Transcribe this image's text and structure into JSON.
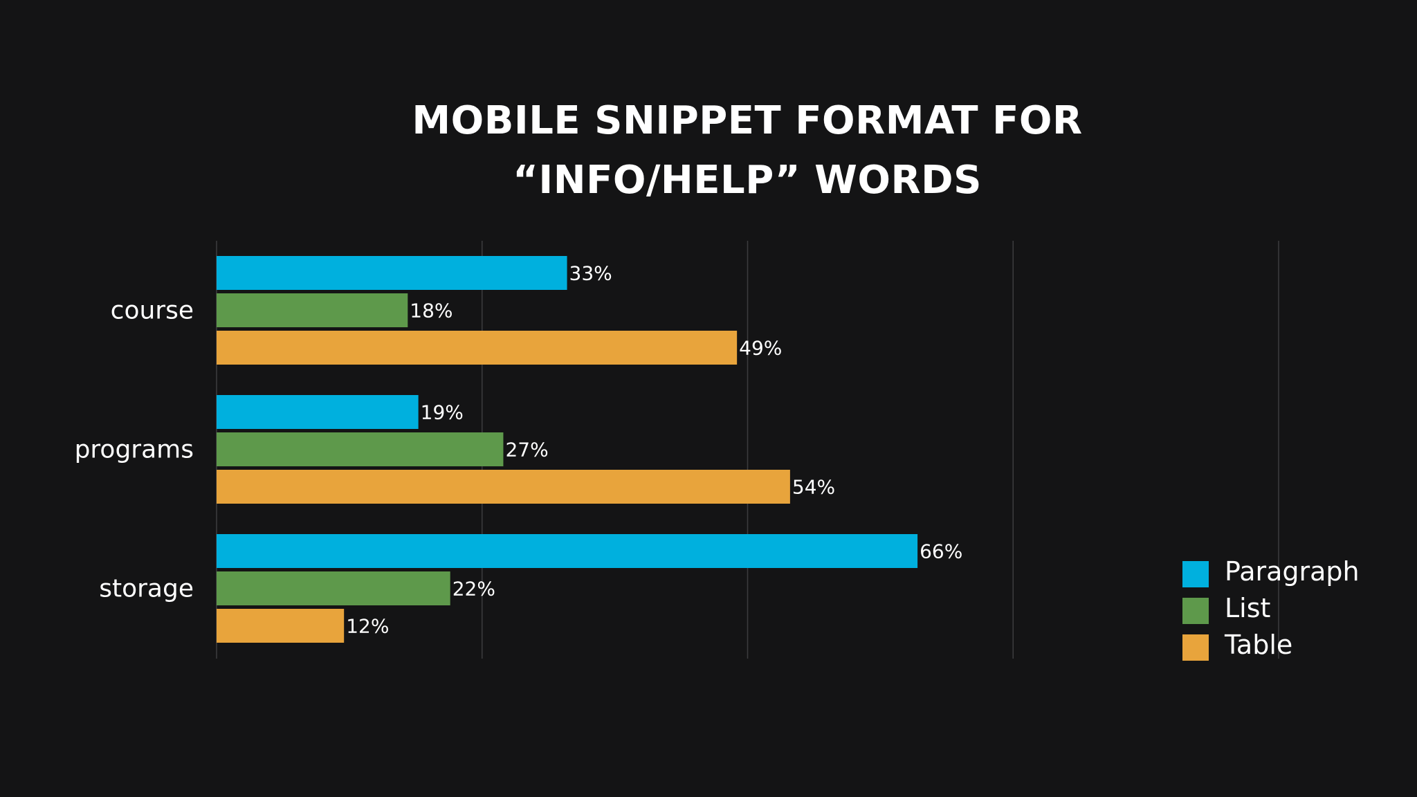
{
  "chart_data": {
    "type": "bar",
    "orientation": "horizontal",
    "title": "MOBILE SNIPPET FORMAT FOR “INFO/HELP” WORDS",
    "title_lines": [
      "MOBILE SNIPPET FORMAT FOR",
      "“INFO/HELP” WORDS"
    ],
    "categories": [
      "course",
      "programs",
      "storage"
    ],
    "series": [
      {
        "name": "Paragraph",
        "color": "#00b0de",
        "values": [
          33,
          19,
          66
        ],
        "labels": [
          "33%",
          "19%",
          "66%"
        ]
      },
      {
        "name": "List",
        "color": "#5e994b",
        "values": [
          18,
          27,
          22
        ],
        "labels": [
          "18%",
          "27%",
          "22%"
        ]
      },
      {
        "name": "Table",
        "color": "#e8a43c",
        "values": [
          49,
          54,
          12
        ],
        "labels": [
          "49%",
          "54%",
          "12%"
        ]
      }
    ],
    "xlim": [
      0,
      100
    ],
    "grid_values": [
      0,
      25,
      50,
      75,
      100
    ],
    "grid": true,
    "xlabel": "",
    "ylabel": "",
    "legend_position": "bottom-right"
  },
  "colors": {
    "background": "#141415",
    "gridline": "#3c3c3e",
    "text": "#ffffff"
  }
}
